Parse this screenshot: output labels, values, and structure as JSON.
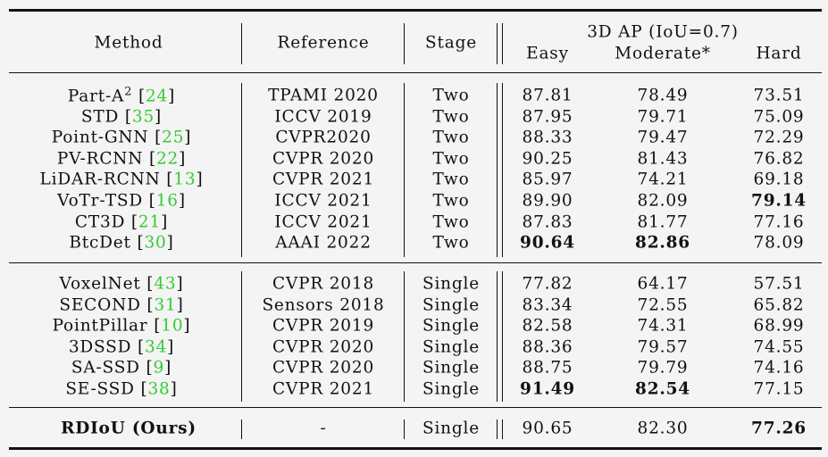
{
  "header": {
    "method": "Method",
    "reference": "Reference",
    "stage": "Stage",
    "group": "3D AP (IoU=0.7)",
    "easy": "Easy",
    "moderate": "Moderate*",
    "hard": "Hard"
  },
  "sections": [
    [
      {
        "method": "Part-A",
        "sup": "2",
        "cite": "24",
        "reference": "TPAMI 2020",
        "stage": "Two",
        "easy": "87.81",
        "moderate": "78.49",
        "hard": "73.51",
        "bold": []
      },
      {
        "method": "STD",
        "cite": "35",
        "reference": "ICCV 2019",
        "stage": "Two",
        "easy": "87.95",
        "moderate": "79.71",
        "hard": "75.09",
        "bold": []
      },
      {
        "method": "Point-GNN",
        "cite": "25",
        "reference": "CVPR2020",
        "stage": "Two",
        "easy": "88.33",
        "moderate": "79.47",
        "hard": "72.29",
        "bold": []
      },
      {
        "method": "PV-RCNN",
        "cite": "22",
        "reference": "CVPR 2020",
        "stage": "Two",
        "easy": "90.25",
        "moderate": "81.43",
        "hard": "76.82",
        "bold": []
      },
      {
        "method": "LiDAR-RCNN",
        "cite": "13",
        "reference": "CVPR 2021",
        "stage": "Two",
        "easy": "85.97",
        "moderate": "74.21",
        "hard": "69.18",
        "bold": []
      },
      {
        "method": "VoTr-TSD",
        "cite": "16",
        "reference": "ICCV 2021",
        "stage": "Two",
        "easy": "89.90",
        "moderate": "82.09",
        "hard": "79.14",
        "bold": [
          "hard"
        ]
      },
      {
        "method": "CT3D",
        "cite": "21",
        "reference": "ICCV 2021",
        "stage": "Two",
        "easy": "87.83",
        "moderate": "81.77",
        "hard": "77.16",
        "bold": []
      },
      {
        "method": "BtcDet",
        "cite": "30",
        "reference": "AAAI 2022",
        "stage": "Two",
        "easy": "90.64",
        "moderate": "82.86",
        "hard": "78.09",
        "bold": [
          "easy",
          "moderate"
        ]
      }
    ],
    [
      {
        "method": "VoxelNet",
        "cite": "43",
        "reference": "CVPR 2018",
        "stage": "Single",
        "easy": "77.82",
        "moderate": "64.17",
        "hard": "57.51",
        "bold": []
      },
      {
        "method": "SECOND",
        "cite": "31",
        "reference": "Sensors 2018",
        "stage": "Single",
        "easy": "83.34",
        "moderate": "72.55",
        "hard": "65.82",
        "bold": []
      },
      {
        "method": "PointPillar",
        "cite": "10",
        "reference": "CVPR 2019",
        "stage": "Single",
        "easy": "82.58",
        "moderate": "74.31",
        "hard": "68.99",
        "bold": []
      },
      {
        "method": "3DSSD",
        "cite": "34",
        "reference": "CVPR 2020",
        "stage": "Single",
        "easy": "88.36",
        "moderate": "79.57",
        "hard": "74.55",
        "bold": []
      },
      {
        "method": "SA-SSD",
        "cite": "9",
        "reference": "CVPR 2020",
        "stage": "Single",
        "easy": "88.75",
        "moderate": "79.79",
        "hard": "74.16",
        "bold": []
      },
      {
        "method": "SE-SSD",
        "cite": "38",
        "reference": "CVPR 2021",
        "stage": "Single",
        "easy": "91.49",
        "moderate": "82.54",
        "hard": "77.15",
        "bold": [
          "easy",
          "moderate"
        ]
      }
    ],
    [
      {
        "method": "RDIoU (Ours)",
        "reference": "-",
        "stage": "Single",
        "easy": "90.65",
        "moderate": "82.30",
        "hard": "77.26",
        "bold": [
          "method",
          "hard"
        ]
      }
    ]
  ]
}
